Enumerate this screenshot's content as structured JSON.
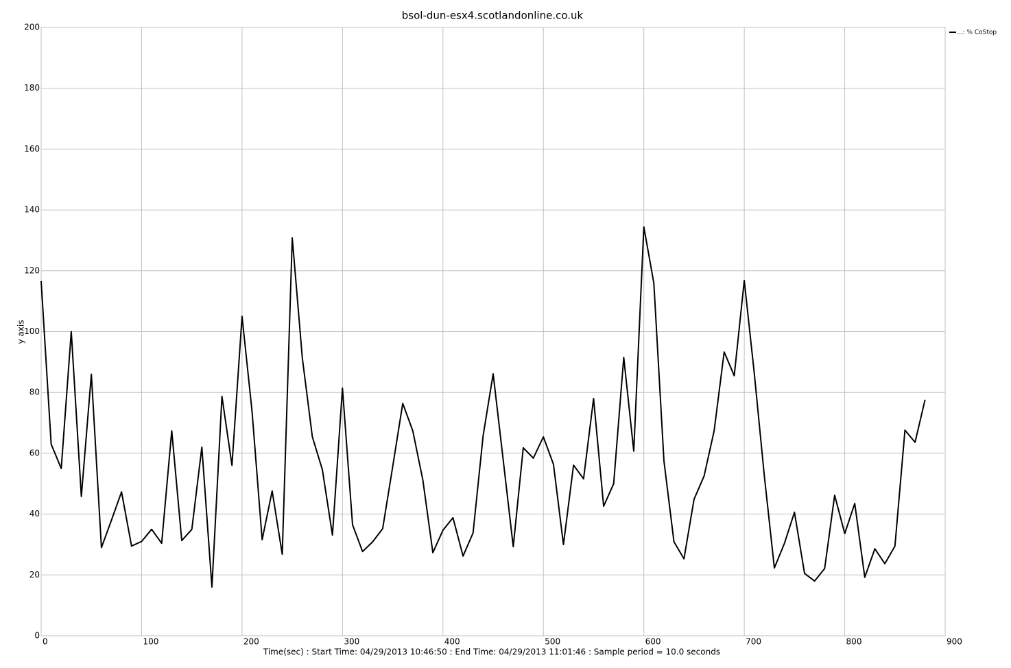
{
  "chart_data": {
    "type": "line",
    "title": "bsol-dun-esx4.scotlandonline.co.uk",
    "xlabel": "Time(sec) : Start Time: 04/29/2013 10:46:50  :  End Time: 04/29/2013 11:01:46 : Sample period = 10.0 seconds",
    "ylabel": "y axis",
    "x": [
      0,
      10,
      20,
      30,
      40,
      50,
      60,
      70,
      80,
      90,
      100,
      110,
      120,
      130,
      140,
      150,
      160,
      170,
      180,
      190,
      200,
      210,
      220,
      230,
      240,
      250,
      260,
      270,
      280,
      290,
      300,
      310,
      320,
      330,
      340,
      350,
      360,
      370,
      380,
      390,
      400,
      410,
      420,
      430,
      440,
      450,
      460,
      470,
      480,
      490,
      500,
      510,
      520,
      530,
      540,
      550,
      560,
      570,
      580,
      590,
      600,
      610,
      620,
      630,
      640,
      650,
      660,
      670,
      680,
      690,
      700,
      710,
      720,
      730,
      740,
      750,
      760,
      770,
      780,
      790,
      800,
      810,
      820,
      830,
      840,
      850,
      860,
      870,
      880
    ],
    "series": [
      {
        "name": "...: % CoStop",
        "color": "#000000",
        "values": [
          116.6,
          63,
          55,
          100,
          45.8,
          86,
          29,
          38,
          47.3,
          29.5,
          31,
          35,
          30.4,
          67.4,
          31.3,
          35,
          62,
          16,
          78.7,
          56,
          105,
          73.7,
          31.6,
          47.6,
          26.8,
          130.8,
          91.3,
          65.4,
          54.6,
          33.1,
          81.4,
          36.5,
          27.7,
          30.9,
          35.2,
          55.7,
          76.4,
          67.4,
          51.2,
          27.3,
          34.7,
          38.8,
          26.2,
          33.8,
          65.8,
          86.1,
          57.9,
          29.3,
          61.8,
          58.4,
          65.4,
          56.4,
          30,
          56.1,
          51.6,
          78,
          42.6,
          50,
          91.5,
          60.7,
          134.4,
          115.9,
          57.5,
          30.9,
          25.3,
          44.9,
          52.5,
          67.4,
          93.3,
          85.5,
          116.8,
          86.1,
          52.5,
          22.3,
          30.4,
          40.6,
          20.5,
          18,
          22.1,
          46.2,
          33.6,
          43.5,
          19.2,
          28.6,
          23.7,
          29.5,
          67.6,
          63.6,
          77.6
        ]
      }
    ],
    "xlim": [
      0,
      900
    ],
    "xticks": [
      0,
      100,
      200,
      300,
      400,
      500,
      600,
      700,
      800,
      900
    ],
    "ylim": [
      0,
      200
    ],
    "yticks": [
      0,
      20,
      40,
      60,
      80,
      100,
      120,
      140,
      160,
      180,
      200
    ],
    "grid": true,
    "legend": "upper right"
  }
}
